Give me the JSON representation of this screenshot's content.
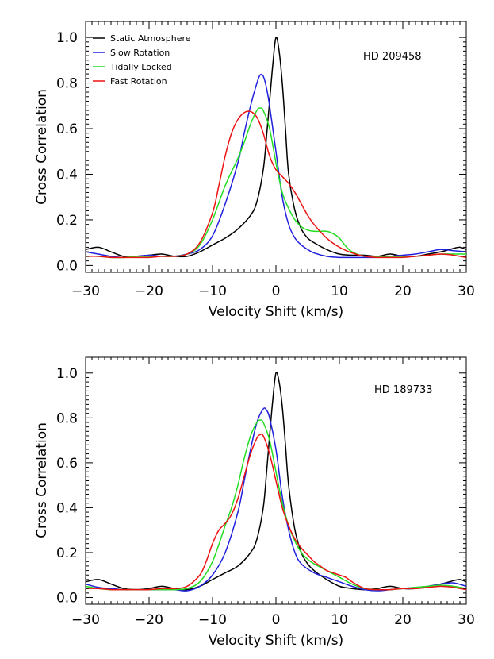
{
  "chart_data": [
    {
      "type": "line",
      "annotation": "HD 209458",
      "xlabel": "Velocity Shift (km/s)",
      "ylabel": "Cross Correlation",
      "xlim": [
        -30,
        30
      ],
      "ylim": [
        -0.03,
        1.07
      ],
      "xticks": [
        -30,
        -20,
        -10,
        0,
        10,
        20,
        30
      ],
      "yticks": [
        0.0,
        0.2,
        0.4,
        0.6,
        0.8,
        1.0
      ],
      "xtick_labels": [
        "−30",
        "−20",
        "−10",
        "0",
        "10",
        "20",
        "30"
      ],
      "ytick_labels": [
        "0.0",
        "0.2",
        "0.4",
        "0.6",
        "0.8",
        "1.0"
      ],
      "grid": false,
      "legend": "top-left",
      "series": [
        {
          "name": "Static Atmosphere",
          "color": "#000000",
          "x": [
            -30,
            -28,
            -26,
            -24,
            -22,
            -20,
            -18,
            -16,
            -14,
            -12,
            -10,
            -8,
            -6,
            -4,
            -3,
            -2,
            -1.5,
            -1,
            -0.5,
            0,
            0.5,
            1,
            1.5,
            2,
            3,
            4,
            5,
            6,
            8,
            10,
            12,
            14,
            16,
            18,
            20,
            22,
            24,
            26,
            28,
            29,
            30
          ],
          "y": [
            0.07,
            0.08,
            0.06,
            0.04,
            0.04,
            0.045,
            0.05,
            0.04,
            0.04,
            0.06,
            0.09,
            0.12,
            0.16,
            0.22,
            0.28,
            0.42,
            0.56,
            0.72,
            0.88,
            1.0,
            0.94,
            0.8,
            0.6,
            0.4,
            0.24,
            0.16,
            0.12,
            0.1,
            0.07,
            0.05,
            0.045,
            0.045,
            0.04,
            0.05,
            0.04,
            0.04,
            0.05,
            0.06,
            0.075,
            0.08,
            0.07
          ]
        },
        {
          "name": "Slow Rotation",
          "color": "#2020dd",
          "x": [
            -30,
            -28,
            -26,
            -24,
            -22,
            -20,
            -18,
            -16,
            -14,
            -12,
            -10,
            -8,
            -6,
            -5,
            -4,
            -3,
            -2.5,
            -2,
            -1.5,
            -1,
            0,
            1,
            2,
            3,
            4,
            5,
            6,
            8,
            10,
            12,
            14,
            16,
            18,
            20,
            22,
            24,
            26,
            28,
            30
          ],
          "y": [
            0.06,
            0.05,
            0.04,
            0.035,
            0.04,
            0.045,
            0.04,
            0.04,
            0.05,
            0.07,
            0.13,
            0.27,
            0.45,
            0.58,
            0.7,
            0.8,
            0.835,
            0.83,
            0.78,
            0.7,
            0.5,
            0.3,
            0.18,
            0.12,
            0.09,
            0.07,
            0.055,
            0.04,
            0.035,
            0.035,
            0.035,
            0.035,
            0.04,
            0.045,
            0.05,
            0.06,
            0.07,
            0.065,
            0.06
          ]
        },
        {
          "name": "Tidally Locked",
          "color": "#22dd22",
          "x": [
            -30,
            -28,
            -26,
            -24,
            -22,
            -20,
            -18,
            -16,
            -14,
            -12,
            -10,
            -8,
            -6,
            -5,
            -4,
            -3,
            -2.5,
            -2,
            -1,
            0,
            1,
            2,
            3,
            4,
            5,
            6,
            7,
            8,
            9,
            10,
            11,
            12,
            14,
            16,
            18,
            20,
            22,
            24,
            26,
            28,
            30
          ],
          "y": [
            0.04,
            0.04,
            0.035,
            0.035,
            0.04,
            0.04,
            0.04,
            0.04,
            0.05,
            0.09,
            0.2,
            0.35,
            0.47,
            0.54,
            0.62,
            0.68,
            0.69,
            0.68,
            0.6,
            0.45,
            0.32,
            0.25,
            0.2,
            0.17,
            0.155,
            0.15,
            0.15,
            0.15,
            0.14,
            0.12,
            0.085,
            0.06,
            0.04,
            0.04,
            0.04,
            0.04,
            0.04,
            0.045,
            0.05,
            0.05,
            0.05
          ]
        },
        {
          "name": "Fast Rotation",
          "color": "#ee1111",
          "x": [
            -30,
            -28,
            -26,
            -24,
            -22,
            -20,
            -18,
            -16,
            -14,
            -12,
            -10,
            -9,
            -8,
            -7,
            -6,
            -5,
            -4,
            -3,
            -2,
            -1,
            0,
            1,
            2,
            3,
            4,
            5,
            6,
            8,
            10,
            12,
            14,
            16,
            18,
            20,
            22,
            24,
            26,
            28,
            30
          ],
          "y": [
            0.04,
            0.04,
            0.035,
            0.035,
            0.035,
            0.035,
            0.04,
            0.04,
            0.05,
            0.1,
            0.23,
            0.35,
            0.48,
            0.58,
            0.64,
            0.67,
            0.675,
            0.65,
            0.58,
            0.48,
            0.42,
            0.39,
            0.36,
            0.32,
            0.27,
            0.22,
            0.18,
            0.12,
            0.08,
            0.055,
            0.04,
            0.035,
            0.035,
            0.035,
            0.04,
            0.045,
            0.05,
            0.045,
            0.035
          ]
        }
      ]
    },
    {
      "type": "line",
      "annotation": "HD 189733",
      "xlabel": "Velocity Shift (km/s)",
      "ylabel": "Cross Correlation",
      "xlim": [
        -30,
        30
      ],
      "ylim": [
        -0.03,
        1.07
      ],
      "xticks": [
        -30,
        -20,
        -10,
        0,
        10,
        20,
        30
      ],
      "yticks": [
        0.0,
        0.2,
        0.4,
        0.6,
        0.8,
        1.0
      ],
      "xtick_labels": [
        "−30",
        "−20",
        "−10",
        "0",
        "10",
        "20",
        "30"
      ],
      "ytick_labels": [
        "0.0",
        "0.2",
        "0.4",
        "0.6",
        "0.8",
        "1.0"
      ],
      "grid": false,
      "series": [
        {
          "name": "Static Atmosphere",
          "color": "#000000",
          "x": [
            -30,
            -28,
            -26,
            -24,
            -22,
            -20,
            -18,
            -16,
            -14,
            -12,
            -10,
            -8,
            -6,
            -4,
            -3,
            -2,
            -1.5,
            -1,
            -0.5,
            0,
            0.5,
            1,
            1.5,
            2,
            3,
            4,
            5,
            6,
            8,
            10,
            12,
            14,
            16,
            18,
            20,
            22,
            24,
            26,
            28,
            29,
            30
          ],
          "y": [
            0.07,
            0.08,
            0.06,
            0.04,
            0.035,
            0.04,
            0.05,
            0.04,
            0.035,
            0.05,
            0.08,
            0.11,
            0.14,
            0.2,
            0.26,
            0.4,
            0.55,
            0.72,
            0.88,
            1.0,
            0.96,
            0.85,
            0.68,
            0.5,
            0.3,
            0.2,
            0.15,
            0.12,
            0.08,
            0.05,
            0.04,
            0.035,
            0.04,
            0.05,
            0.04,
            0.04,
            0.05,
            0.06,
            0.075,
            0.08,
            0.07
          ]
        },
        {
          "name": "Slow Rotation",
          "color": "#2020dd",
          "x": [
            -30,
            -28,
            -26,
            -24,
            -22,
            -20,
            -18,
            -16,
            -14,
            -12,
            -10,
            -8,
            -6,
            -5,
            -4,
            -3,
            -2,
            -1.5,
            -1,
            0,
            1,
            2,
            3,
            4,
            6,
            8,
            10,
            12,
            14,
            16,
            18,
            20,
            22,
            24,
            26,
            28,
            30
          ],
          "y": [
            0.06,
            0.045,
            0.04,
            0.035,
            0.035,
            0.035,
            0.035,
            0.035,
            0.03,
            0.05,
            0.1,
            0.2,
            0.38,
            0.52,
            0.66,
            0.78,
            0.84,
            0.835,
            0.8,
            0.66,
            0.45,
            0.3,
            0.2,
            0.15,
            0.11,
            0.09,
            0.07,
            0.05,
            0.035,
            0.03,
            0.035,
            0.04,
            0.045,
            0.05,
            0.06,
            0.065,
            0.05
          ]
        },
        {
          "name": "Tidally Locked",
          "color": "#22dd22",
          "x": [
            -30,
            -28,
            -26,
            -24,
            -22,
            -20,
            -18,
            -16,
            -14,
            -12,
            -10,
            -8,
            -7,
            -6,
            -5,
            -4,
            -3,
            -2.5,
            -2,
            -1,
            0,
            1,
            2,
            3,
            4,
            5,
            6,
            8,
            10,
            12,
            14,
            16,
            18,
            20,
            22,
            24,
            26,
            28,
            30
          ],
          "y": [
            0.05,
            0.04,
            0.035,
            0.035,
            0.035,
            0.035,
            0.035,
            0.035,
            0.04,
            0.07,
            0.16,
            0.32,
            0.4,
            0.5,
            0.62,
            0.72,
            0.78,
            0.79,
            0.78,
            0.7,
            0.56,
            0.42,
            0.32,
            0.25,
            0.2,
            0.17,
            0.15,
            0.12,
            0.09,
            0.06,
            0.04,
            0.035,
            0.035,
            0.04,
            0.045,
            0.05,
            0.055,
            0.05,
            0.04
          ]
        },
        {
          "name": "Fast Rotation",
          "color": "#ee1111",
          "x": [
            -30,
            -28,
            -26,
            -24,
            -22,
            -20,
            -18,
            -16,
            -14,
            -12,
            -11,
            -10,
            -9,
            -8,
            -7,
            -6,
            -5,
            -4,
            -3,
            -2.5,
            -2,
            -1,
            0,
            1,
            2,
            3,
            4,
            5,
            6,
            7,
            8,
            9,
            10,
            11,
            12,
            14,
            16,
            18,
            20,
            22,
            24,
            26,
            28,
            30
          ],
          "y": [
            0.04,
            0.04,
            0.035,
            0.035,
            0.035,
            0.035,
            0.04,
            0.04,
            0.05,
            0.1,
            0.16,
            0.24,
            0.3,
            0.33,
            0.37,
            0.44,
            0.54,
            0.64,
            0.71,
            0.725,
            0.72,
            0.64,
            0.52,
            0.4,
            0.32,
            0.26,
            0.22,
            0.19,
            0.16,
            0.14,
            0.12,
            0.11,
            0.1,
            0.09,
            0.07,
            0.04,
            0.035,
            0.035,
            0.04,
            0.04,
            0.045,
            0.05,
            0.045,
            0.035
          ]
        }
      ]
    }
  ]
}
